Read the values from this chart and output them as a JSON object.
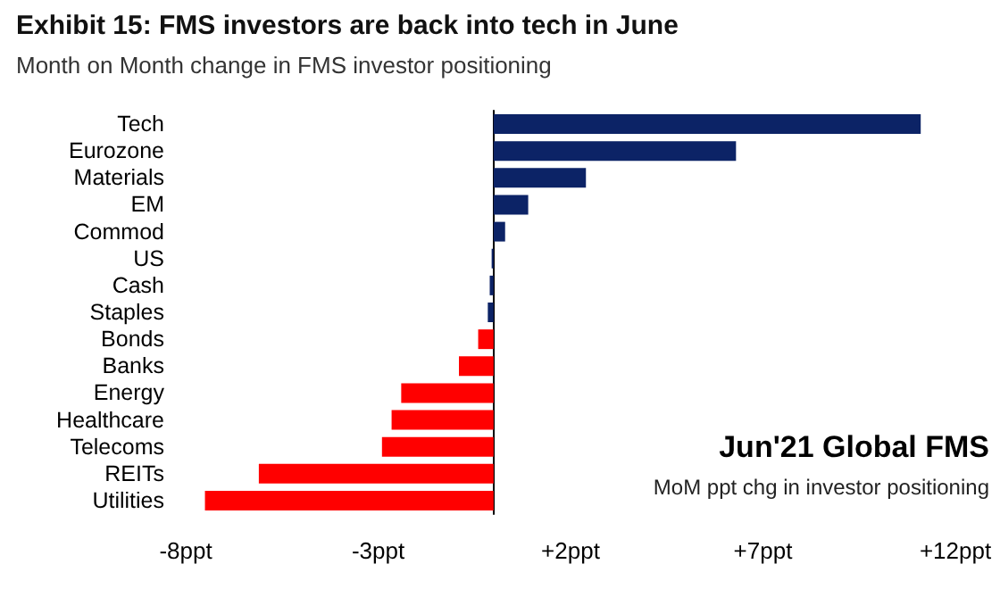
{
  "chart_data": {
    "type": "bar",
    "orientation": "horizontal",
    "title": "Exhibit 15: FMS investors are back into tech in June",
    "subtitle": "Month on Month change in FMS investor positioning",
    "categories": [
      "Tech",
      "Eurozone",
      "Materials",
      "EM",
      "Commod",
      "US",
      "Cash",
      "Staples",
      "Bonds",
      "Banks",
      "Energy",
      "Healthcare",
      "Telecoms",
      "REITs",
      "Utilities"
    ],
    "values": [
      11.1,
      6.3,
      2.4,
      0.9,
      0.3,
      -0.05,
      -0.1,
      -0.15,
      -0.4,
      -0.9,
      -2.4,
      -2.65,
      -2.9,
      -6.1,
      -7.5
    ],
    "colors": [
      "#0c2366",
      "#0c2366",
      "#0c2366",
      "#0c2366",
      "#0c2366",
      "#0c2366",
      "#0c2366",
      "#0c2366",
      "#ff0000",
      "#ff0000",
      "#ff0000",
      "#ff0000",
      "#ff0000",
      "#ff0000",
      "#ff0000"
    ],
    "xlim": [
      -8,
      12
    ],
    "xticks": [
      {
        "value": -8,
        "label": "-8ppt"
      },
      {
        "value": -3,
        "label": "-3ppt"
      },
      {
        "value": 2,
        "label": "+2ppt"
      },
      {
        "value": 7,
        "label": "+7ppt"
      },
      {
        "value": 12,
        "label": "+12ppt"
      }
    ],
    "annotations": [
      "Jun'21 Global FMS",
      "MoM ppt chg in investor positioning"
    ],
    "grid": false
  }
}
